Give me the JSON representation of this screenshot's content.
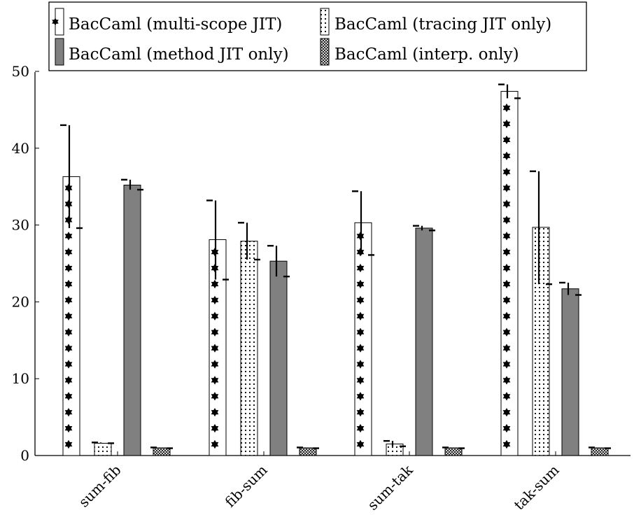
{
  "chart_data": {
    "type": "bar",
    "categories": [
      "sum-fib",
      "fib-sum",
      "sum-tak",
      "tak-sum"
    ],
    "ylim": [
      0,
      50
    ],
    "yticks": [
      0,
      10,
      20,
      30,
      40,
      50
    ],
    "series": [
      {
        "name": "BacCaml (multi-scope JIT)",
        "pattern": "stars",
        "fill": "#ffffff",
        "values": [
          36.3,
          28.1,
          30.3,
          47.4
        ],
        "err_high": [
          43.0,
          33.2,
          34.4,
          48.3
        ],
        "err_low": [
          29.6,
          22.9,
          26.1,
          46.5
        ]
      },
      {
        "name": "BacCaml (tracing JIT only)",
        "pattern": "dots",
        "fill": "#ffffff",
        "values": [
          1.6,
          27.9,
          1.5,
          29.7
        ],
        "err_high": [
          1.7,
          30.3,
          1.9,
          37.0
        ],
        "err_low": [
          1.6,
          25.5,
          1.2,
          22.3
        ]
      },
      {
        "name": "BacCaml (method JIT only)",
        "pattern": "solid",
        "fill": "#808080",
        "values": [
          35.2,
          25.3,
          29.6,
          21.7
        ],
        "err_high": [
          35.9,
          27.3,
          29.9,
          22.5
        ],
        "err_low": [
          34.6,
          23.3,
          29.3,
          20.9
        ]
      },
      {
        "name": "BacCaml (interp. only)",
        "pattern": "crosshatch",
        "fill": "#ffffff",
        "values": [
          1.0,
          1.0,
          1.0,
          1.0
        ],
        "err_high": [
          1.05,
          1.05,
          1.05,
          1.05
        ],
        "err_low": [
          0.95,
          0.95,
          0.95,
          0.95
        ]
      }
    ],
    "legend": {
      "placement": "top-left",
      "columns": 2
    },
    "grid": false
  }
}
